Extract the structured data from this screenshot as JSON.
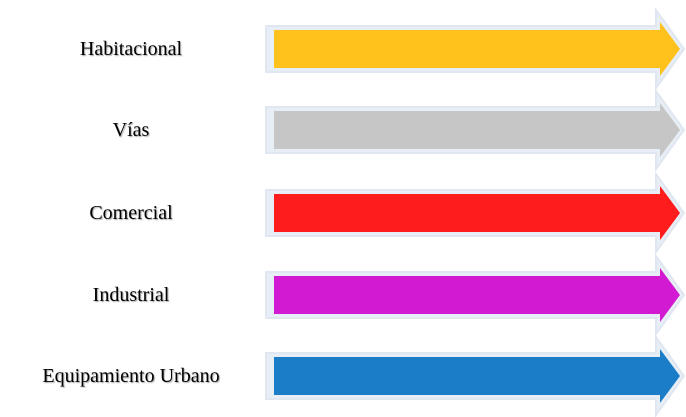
{
  "legend": {
    "items": [
      {
        "label": "Habitacional",
        "color": "#FFC21D"
      },
      {
        "label": "Vías",
        "color": "#C6C6C6"
      },
      {
        "label": "Comercial",
        "color": "#FF1C1C"
      },
      {
        "label": "Industrial",
        "color": "#D21AD2"
      },
      {
        "label": "Equipamiento Urbano",
        "color": "#1B7CC7"
      }
    ]
  }
}
